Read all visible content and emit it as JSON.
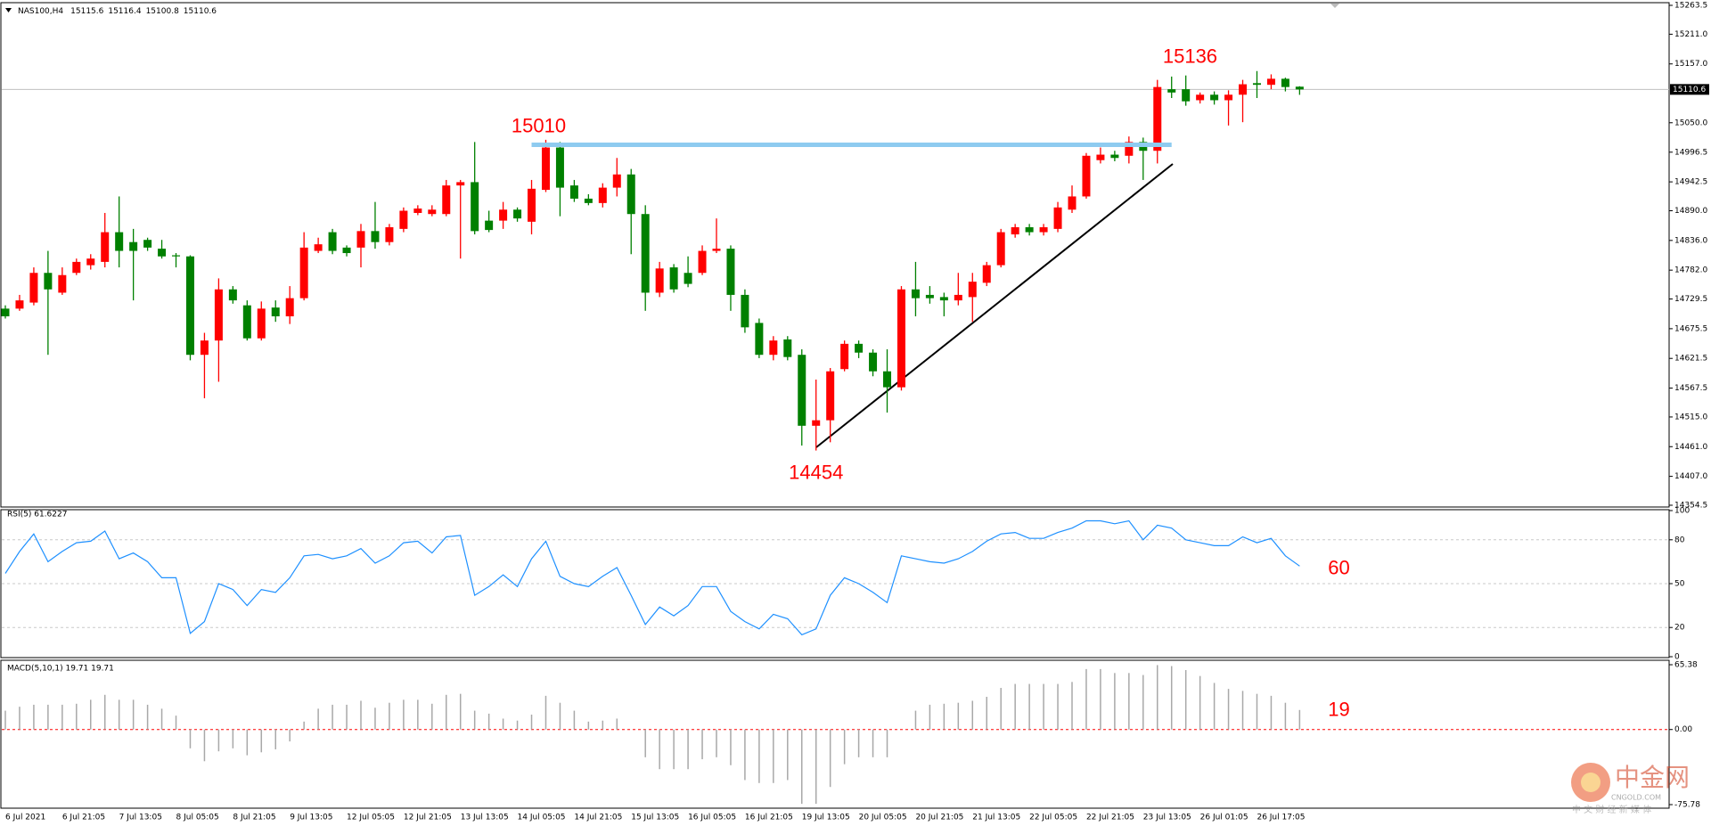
{
  "chart_data": [
    {
      "type": "candlestick",
      "title": "NAS100,H4",
      "categories": [
        "6 Jul 2021",
        null,
        null,
        null,
        "6 Jul 21:05",
        null,
        null,
        null,
        "7 Jul 13:05",
        null,
        null,
        null,
        "8 Jul 05:05",
        null,
        null,
        null,
        "8 Jul 21:05",
        null,
        null,
        null,
        "9 Jul 13:05",
        null,
        null,
        null,
        "12 Jul 05:05",
        null,
        null,
        null,
        "12 Jul 21:05",
        null,
        null,
        null,
        "13 Jul 13:05",
        null,
        null,
        null,
        "14 Jul 05:05",
        null,
        null,
        null,
        "14 Jul 21:05",
        null,
        null,
        null,
        "15 Jul 13:05",
        null,
        null,
        null,
        "16 Jul 05:05",
        null,
        null,
        null,
        "16 Jul 21:05",
        null,
        null,
        null,
        "19 Jul 13:05",
        null,
        null,
        null,
        "20 Jul 05:05",
        null,
        null,
        null,
        "20 Jul 21:05",
        null,
        null,
        null,
        "21 Jul 13:05",
        null,
        null,
        null,
        "22 Jul 05:05",
        null,
        null,
        null,
        "22 Jul 21:05",
        null,
        null,
        null,
        "23 Jul 13:05",
        null,
        null,
        null,
        "26 Jul 01:05",
        null,
        null,
        null,
        "26 Jul 17:05",
        null,
        null,
        null
      ],
      "open": [
        14712,
        14712,
        14723,
        14777,
        14741,
        14777,
        14791,
        14797,
        14851,
        14833,
        14837,
        14821,
        14809,
        14807,
        14628,
        14654,
        14747,
        14718,
        14658,
        14714,
        14698,
        14731,
        14817,
        14851,
        14823,
        14823,
        14853,
        14833,
        14857,
        14886,
        14884,
        14884,
        14936,
        14942,
        14872,
        14872,
        14892,
        14870,
        14928,
        15005,
        14936,
        14912,
        14904,
        14932,
        14956,
        14884,
        14741,
        14787,
        14777,
        14777,
        14817,
        14821,
        14737,
        14686,
        14628,
        14656,
        14628,
        14499,
        14509,
        14602,
        14648,
        14632,
        14598,
        14569,
        14747,
        14737,
        14733,
        14727,
        14733,
        14759,
        14791,
        14847,
        14860,
        14851,
        14857,
        14892,
        14916,
        14982,
        14992,
        14990,
        15015,
        14999,
        15111,
        15111,
        15091,
        15101,
        15091,
        15101,
        15122,
        15119,
        15130,
        15115.6
      ],
      "high": [
        14718,
        14737,
        14787,
        14817,
        14787,
        14803,
        14811,
        14886,
        14916,
        14857,
        14841,
        14837,
        14813,
        14809,
        14668,
        14767,
        14753,
        14727,
        14725,
        14727,
        14753,
        14851,
        14841,
        14857,
        14827,
        14866,
        14906,
        14866,
        14896,
        14900,
        14900,
        14946,
        14946,
        15015,
        14890,
        14906,
        14896,
        14946,
        15019,
        15015,
        14946,
        14920,
        14940,
        14986,
        14966,
        14900,
        14797,
        14793,
        14807,
        14827,
        14876,
        14827,
        14747,
        14694,
        14662,
        14662,
        14638,
        14583,
        14604,
        14654,
        14654,
        14638,
        14638,
        14753,
        14797,
        14753,
        14741,
        14777,
        14777,
        14797,
        14857,
        14866,
        14866,
        14866,
        14906,
        14936,
        14995,
        15005,
        14999,
        15025,
        15023,
        15128,
        15134,
        15136,
        15105,
        15107,
        15109,
        15128,
        15144,
        15138,
        15132,
        15116.4
      ],
      "low": [
        14694,
        14708,
        14718,
        14628,
        14737,
        14773,
        14783,
        14787,
        14787,
        14727,
        14817,
        14803,
        14787,
        14618,
        14549,
        14579,
        14721,
        14654,
        14654,
        14688,
        14684,
        14727,
        14813,
        14811,
        14807,
        14787,
        14821,
        14827,
        14851,
        14882,
        14880,
        14880,
        14803,
        14847,
        14851,
        14857,
        14870,
        14847,
        14924,
        14880,
        14906,
        14900,
        14896,
        14916,
        14811,
        14708,
        14733,
        14741,
        14751,
        14773,
        14813,
        14708,
        14668,
        14622,
        14618,
        14618,
        14463,
        14454,
        14469,
        14598,
        14622,
        14589,
        14523,
        14563,
        14698,
        14721,
        14698,
        14718,
        14688,
        14753,
        14787,
        14841,
        14845,
        14845,
        14851,
        14886,
        14912,
        14976,
        14980,
        14976,
        14946,
        14976,
        15095,
        15081,
        15085,
        15083,
        15045,
        15051,
        15095,
        15111,
        15107,
        15100.8
      ],
      "close": [
        14698,
        14727,
        14777,
        14747,
        14773,
        14797,
        14803,
        14851,
        14817,
        14817,
        14823,
        14807,
        14807,
        14628,
        14654,
        14747,
        14727,
        14658,
        14712,
        14698,
        14731,
        14823,
        14829,
        14817,
        14813,
        14853,
        14833,
        14860,
        14890,
        14894,
        14892,
        14936,
        14942,
        14853,
        14855,
        14892,
        14876,
        14930,
        15005,
        14932,
        14912,
        14904,
        14932,
        14956,
        14884,
        14741,
        14785,
        14747,
        14757,
        14817,
        14821,
        14737,
        14678,
        14628,
        14654,
        14624,
        14499,
        14509,
        14598,
        14648,
        14632,
        14598,
        14569,
        14747,
        14731,
        14731,
        14727,
        14737,
        14761,
        14791,
        14851,
        14860,
        14851,
        14860,
        14896,
        14916,
        14990,
        14992,
        14986,
        15015,
        14999,
        15115,
        15105,
        15089,
        15101,
        15091,
        15101,
        15120,
        15119,
        15130,
        15115,
        15110.6
      ],
      "up_color": "#ff0000",
      "down_color": "#008000",
      "ylim": [
        14354.5,
        15263.5
      ],
      "yticks": [
        14354.5,
        {
          "value": 14407,
          "label": "14407.0"
        },
        {
          "value": 14461,
          "label": "14461.0"
        },
        {
          "value": 14515,
          "label": "14515.0"
        },
        14567.5,
        14621.5,
        14675.5,
        14729.5,
        {
          "value": 14782,
          "label": "14782.0"
        },
        {
          "value": 14836,
          "label": "14836.0"
        },
        {
          "value": 14890,
          "label": "14890.0"
        },
        14942.5,
        14996.5,
        {
          "value": 15050,
          "label": "15050.0"
        },
        {
          "value": 15157,
          "label": "15157.0"
        },
        {
          "value": 15211,
          "label": "15211.0"
        },
        15263.5
      ],
      "grid": false,
      "annotations": [
        15010,
        15136,
        14454
      ],
      "annotation_color": "#ff0000",
      "level_color": "#8ecbf0"
    },
    {
      "type": "line",
      "title": "RSI(5) 61.6227",
      "values": [
        57,
        72,
        84,
        65,
        72,
        78,
        79,
        86,
        67,
        71,
        65,
        54,
        54,
        16,
        24,
        50,
        46,
        35,
        46,
        44,
        54,
        69,
        70,
        67,
        69,
        74,
        64,
        69,
        78,
        79,
        71,
        82,
        83,
        42,
        48,
        56,
        48,
        67,
        79,
        55,
        50,
        48,
        55,
        61,
        42,
        22,
        34,
        28,
        35,
        48,
        48,
        31,
        24,
        19,
        29,
        26,
        15,
        19,
        42,
        54,
        50,
        44,
        37,
        69,
        67,
        65,
        64,
        67,
        72,
        79,
        84,
        85,
        81,
        81,
        85,
        88,
        93,
        93,
        91,
        93,
        80,
        90,
        88,
        80,
        78,
        76,
        76,
        82,
        78,
        81,
        69,
        62
      ],
      "color": "#1e90ff",
      "ylim": [
        0,
        100
      ],
      "yticks": [
        0,
        20,
        50,
        80,
        100
      ],
      "grid": true,
      "grid_color": "#c8c8c8",
      "annotations": [
        60
      ],
      "annotation_color": "#ff0000"
    },
    {
      "type": "bar",
      "title": "MACD(5,10,1) 19.71 19.71",
      "values": [
        19,
        23,
        25,
        25,
        25,
        26,
        30,
        35,
        30,
        30,
        25,
        21,
        14,
        -19,
        -32,
        -22,
        -19,
        -26,
        -23,
        -20,
        -12,
        8,
        21,
        25,
        25,
        29,
        22,
        27,
        30,
        30,
        26,
        35,
        36,
        19,
        16,
        11,
        9,
        15,
        34,
        27,
        19,
        8,
        9,
        11,
        0,
        -28,
        -40,
        -40,
        -40,
        -30,
        -28,
        -36,
        -51,
        -54,
        -54,
        -51,
        -75,
        -75,
        -58,
        -35,
        -28,
        -28,
        -28,
        0,
        19,
        25,
        26,
        27,
        29,
        33,
        42,
        46,
        46,
        46,
        46,
        48,
        61,
        61,
        57,
        57,
        55,
        65,
        64,
        60,
        54,
        47,
        41,
        39,
        36,
        34,
        27,
        19.71
      ],
      "color": "#a8a8a8",
      "ylim": [
        -75.78,
        65.38
      ],
      "yticks": [
        -75.78,
        {
          "value": 0,
          "label": "0.00"
        },
        65.38
      ],
      "grid": true,
      "grid_color": "#ff0000",
      "annotations": [
        19
      ],
      "annotation_color": "#ff0000"
    }
  ],
  "watermark": {
    "brand": "中金网",
    "site": "CNGOLD.COM",
    "tagline": "中 文 财 经 新 媒 体"
  }
}
